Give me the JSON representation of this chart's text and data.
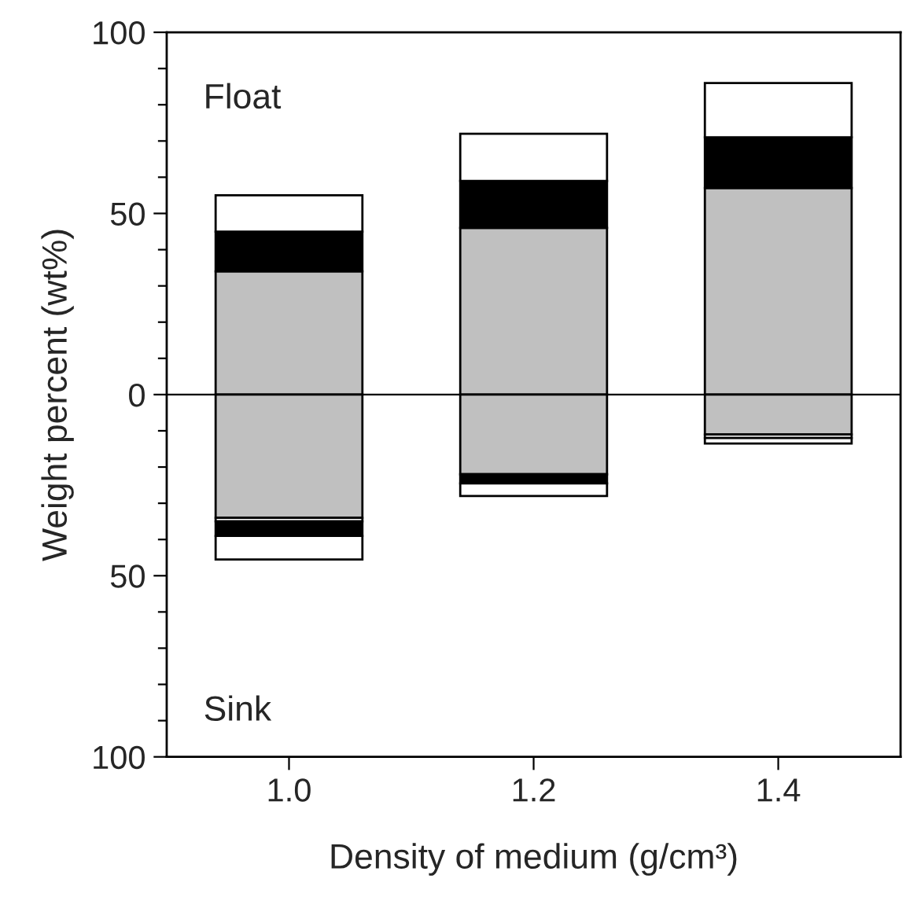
{
  "chart_data": {
    "type": "bar",
    "stacked": true,
    "xlabel": "Density of medium (g/cm³)",
    "ylabel": "Weight percent (wt%)",
    "categories": [
      "1.0",
      "1.2",
      "1.4"
    ],
    "series": [
      {
        "color": "#c0c0c0",
        "values": [
          34,
          46,
          57
        ]
      },
      {
        "color": "#000000",
        "values": [
          11,
          13,
          14
        ]
      },
      {
        "color": "#ffffff",
        "values": [
          10,
          13,
          15
        ]
      },
      {
        "color": "#c0c0c0",
        "values": [
          -34,
          -22,
          -11
        ]
      },
      {
        "color": "#ffffff",
        "values": [
          -1,
          null,
          -1
        ]
      },
      {
        "color": "#000000",
        "values": [
          -4,
          -2.5,
          null
        ]
      },
      {
        "color": "#ffffff",
        "values": [
          -6.5,
          -3.5,
          -1.5
        ]
      }
    ],
    "ylim": [
      -100,
      100
    ],
    "yticks": [
      {
        "value": -100,
        "label": "100"
      },
      {
        "value": -90,
        "label": null
      },
      {
        "value": -80,
        "label": null
      },
      {
        "value": -70,
        "label": null
      },
      {
        "value": -60,
        "label": null
      },
      {
        "value": -50,
        "label": "50"
      },
      {
        "value": -40,
        "label": null
      },
      {
        "value": -30,
        "label": null
      },
      {
        "value": -20,
        "label": null
      },
      {
        "value": -10,
        "label": null
      },
      0,
      {
        "value": 10,
        "label": null
      },
      {
        "value": 20,
        "label": null
      },
      {
        "value": 30,
        "label": null
      },
      {
        "value": 40,
        "label": null
      },
      50,
      {
        "value": 60,
        "label": null
      },
      {
        "value": 70,
        "label": null
      },
      {
        "value": 80,
        "label": null
      },
      {
        "value": 90,
        "label": null
      },
      100
    ],
    "ref_lines": [
      {
        "axis": "y",
        "value": 0,
        "color": "#000000"
      }
    ],
    "annotations": [
      "Float",
      "Sink"
    ],
    "grid": false,
    "legend": false
  }
}
